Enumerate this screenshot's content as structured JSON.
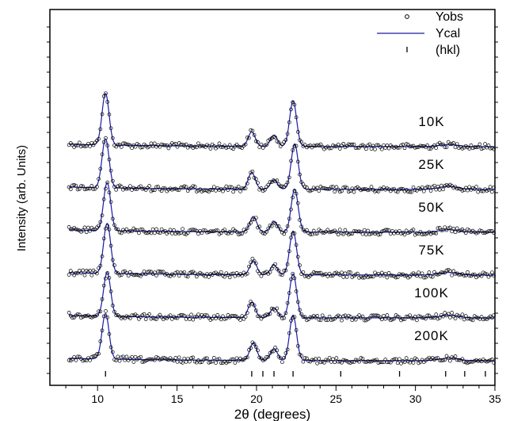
{
  "chart_data": {
    "type": "line",
    "xlabel": "2θ (degrees)",
    "ylabel": "Intensity (arb. Units)",
    "xlim": [
      7,
      35
    ],
    "xticks": [
      10,
      15,
      20,
      25,
      30,
      35
    ],
    "legend": {
      "placement": "top-right",
      "entries": [
        {
          "label": "Yobs",
          "marker": "open-circle"
        },
        {
          "label": "Ycal",
          "marker": "line"
        },
        {
          "label": "(hkl)",
          "marker": "tick"
        }
      ]
    },
    "colors": {
      "ycal": "#1a1aa8",
      "yobs": "#000000"
    },
    "hkl_positions": [
      10.5,
      19.7,
      20.4,
      21.1,
      22.3,
      25.3,
      29.0,
      31.9,
      33.1,
      34.4
    ],
    "series": [
      {
        "name": "10K",
        "peaks": [
          [
            10.5,
            1.0
          ],
          [
            19.7,
            0.28
          ],
          [
            21.1,
            0.22
          ],
          [
            22.3,
            0.88
          ],
          [
            32.1,
            0.04
          ]
        ],
        "offset": 5
      },
      {
        "name": "25K",
        "peaks": [
          [
            10.5,
            0.95
          ],
          [
            19.7,
            0.32
          ],
          [
            21.1,
            0.18
          ],
          [
            22.4,
            0.88
          ],
          [
            32.1,
            0.06
          ]
        ],
        "offset": 4
      },
      {
        "name": "50K",
        "peaks": [
          [
            10.6,
            0.93
          ],
          [
            19.8,
            0.3
          ],
          [
            21.1,
            0.2
          ],
          [
            22.4,
            0.83
          ],
          [
            32.1,
            0.05
          ]
        ],
        "offset": 3
      },
      {
        "name": "75K",
        "peaks": [
          [
            10.6,
            0.97
          ],
          [
            19.8,
            0.27
          ],
          [
            21.1,
            0.19
          ],
          [
            22.3,
            0.85
          ],
          [
            32.1,
            0.05
          ]
        ],
        "offset": 2
      },
      {
        "name": "100K",
        "peaks": [
          [
            10.6,
            0.85
          ],
          [
            19.7,
            0.3
          ],
          [
            21.1,
            0.19
          ],
          [
            22.3,
            0.85
          ],
          [
            32.1,
            0.05
          ]
        ],
        "offset": 1
      },
      {
        "name": "200K",
        "peaks": [
          [
            10.5,
            0.88
          ],
          [
            19.8,
            0.34
          ],
          [
            21.1,
            0.23
          ],
          [
            22.3,
            0.88
          ],
          [
            32.1,
            0.05
          ]
        ],
        "offset": 0
      }
    ]
  }
}
